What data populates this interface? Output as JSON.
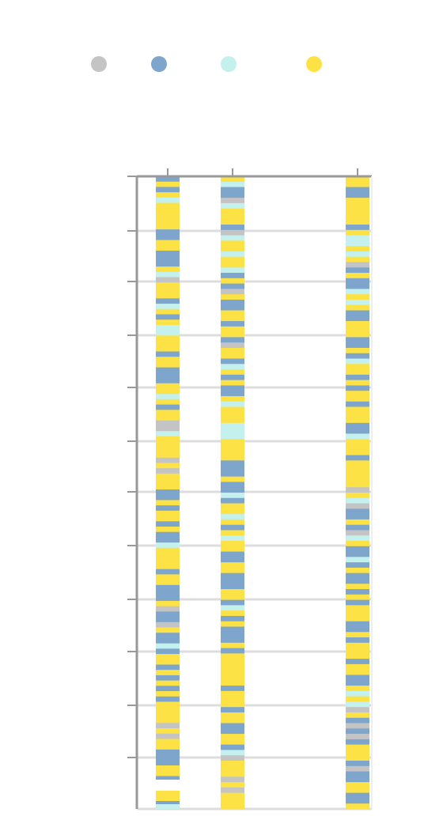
{
  "chart_data": {
    "type": "heatmap",
    "title": "",
    "xlabel": "",
    "ylabel": "",
    "legend": {
      "placement": "top",
      "entries": [
        {
          "name": "",
          "color": "#c4c4c4"
        },
        {
          "name": "",
          "color": "#7ea5cc"
        },
        {
          "name": "",
          "color": "#c4f0ee"
        },
        {
          "name": "",
          "color": "#fde245"
        }
      ]
    },
    "columns": [
      {
        "name": "",
        "x": 0.18,
        "rows": 118,
        "end": 0.99
      },
      {
        "name": "",
        "x": 0.45,
        "rows": 118,
        "end": 1.0
      },
      {
        "name": "",
        "x": 0.97,
        "rows": 118,
        "end": 1.0
      }
    ],
    "x_ticks": [
      0.18,
      0.45,
      0.97
    ],
    "y_ticks": 12,
    "grid": true
  }
}
